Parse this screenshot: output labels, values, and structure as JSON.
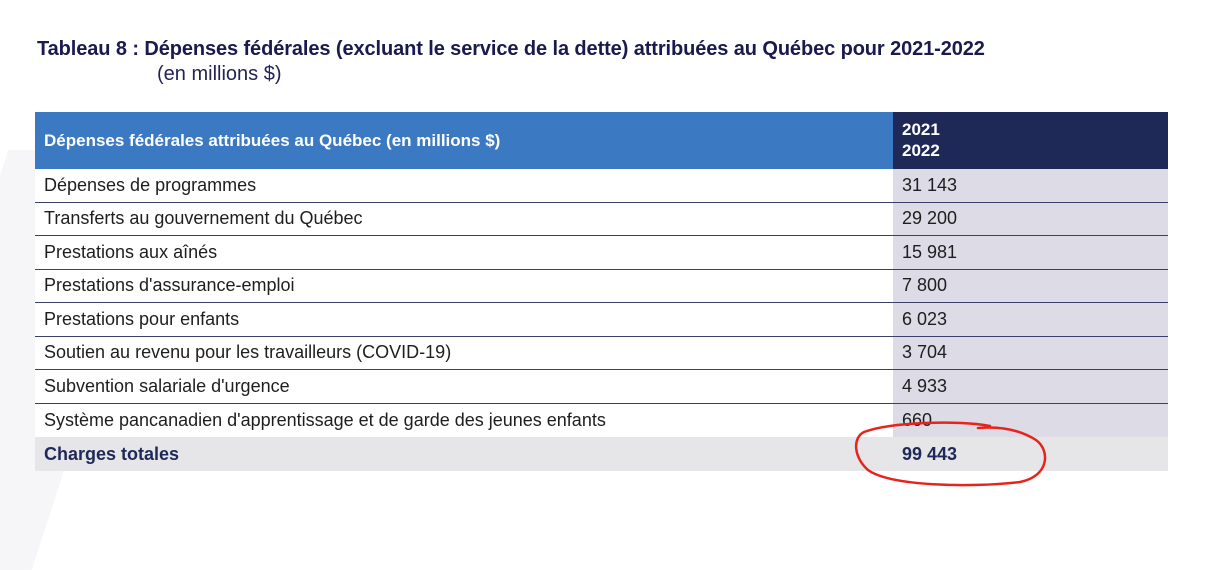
{
  "title": {
    "line1": "Tableau 8 : Dépenses fédérales (excluant le service de la dette) attribuées au Québec pour 2021-2022",
    "line2": "(en millions $)"
  },
  "table": {
    "header_label": "Dépenses fédérales attribuées au Québec (en millions $)",
    "header_year_line1": "2021",
    "header_year_line2": "2022",
    "rows": [
      {
        "label": "Dépenses de programmes",
        "value": "31 143"
      },
      {
        "label": "Transferts au gouvernement du Québec",
        "value": "29 200"
      },
      {
        "label": "Prestations aux aînés",
        "value": "15 981"
      },
      {
        "label": "Prestations d'assurance-emploi",
        "value": "7 800"
      },
      {
        "label": "Prestations pour enfants",
        "value": "6 023"
      },
      {
        "label": "Soutien au revenu pour les travailleurs (COVID-19)",
        "value": "3 704"
      },
      {
        "label": "Subvention salariale d'urgence",
        "value": "4 933"
      },
      {
        "label": "Système pancanadien d'apprentissage et de garde des jeunes enfants",
        "value": "660"
      }
    ],
    "total_label": "Charges totales",
    "total_value": "99 443"
  },
  "colors": {
    "header_blue": "#3b79c3",
    "header_navy": "#1f2958",
    "value_column": "#dcdbe6",
    "annotation_red": "#e8231c"
  }
}
